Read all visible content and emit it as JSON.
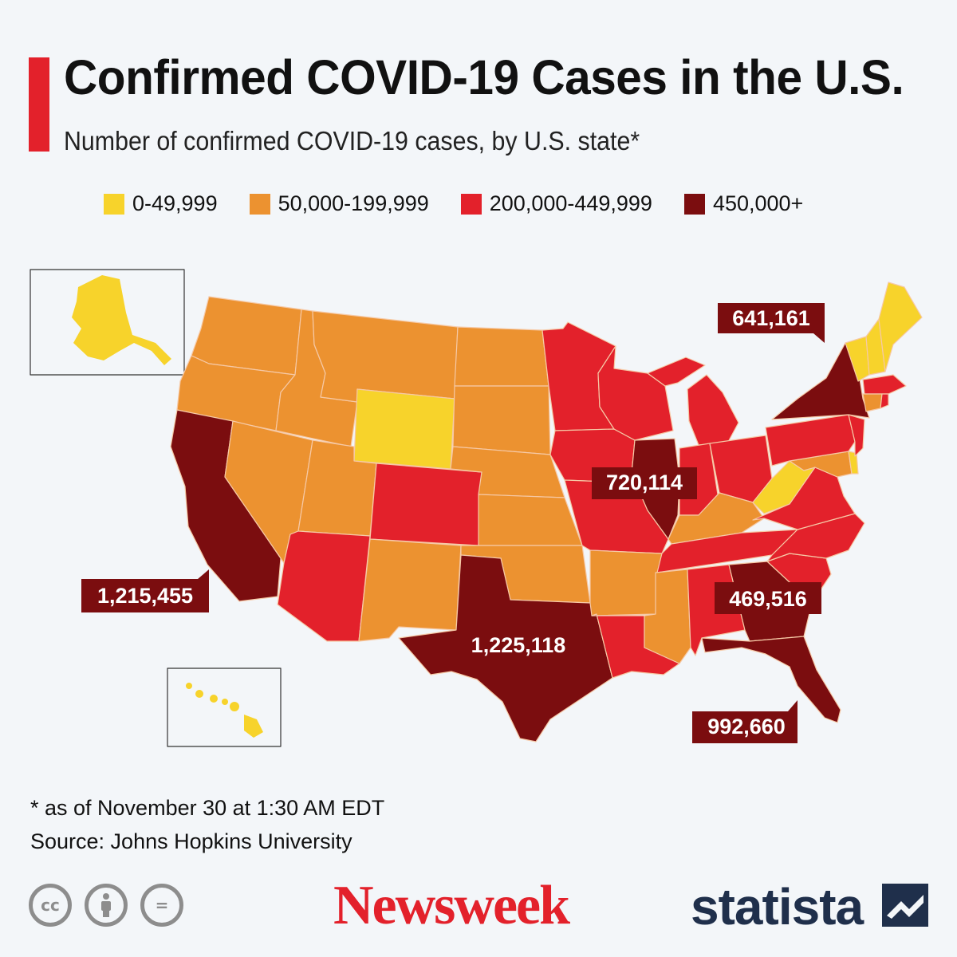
{
  "title": "Confirmed COVID-19 Cases in the U.S.",
  "subtitle": "Number of confirmed COVID-19 cases, by U.S. state*",
  "colors": {
    "accent": "#e3212b",
    "bin_low": "#f7d32b",
    "bin_mid": "#ec9230",
    "bin_high": "#e3212b",
    "bin_top": "#7b0d0f",
    "background": "#f3f6f9"
  },
  "legend": [
    {
      "label": "0-49,999",
      "color": "#f7d32b"
    },
    {
      "label": "50,000-199,999",
      "color": "#ec9230"
    },
    {
      "label": "200,000-449,999",
      "color": "#e3212b"
    },
    {
      "label": "450,000+",
      "color": "#7b0d0f"
    }
  ],
  "callouts": {
    "ny": "641,161",
    "il": "720,114",
    "ca": "1,215,455",
    "tx": "1,225,118",
    "ga": "469,516",
    "fl": "992,660"
  },
  "footnote": "* as of November 30 at 1:30 AM EDT",
  "source": "Source: Johns Hopkins University",
  "license_icons": [
    "cc-icon",
    "attribution-icon",
    "no-derivatives-icon"
  ],
  "license_glyphs": {
    "cc": "cc",
    "nd": "="
  },
  "logos": {
    "newsweek": "Newsweek",
    "statista": "statista"
  }
}
